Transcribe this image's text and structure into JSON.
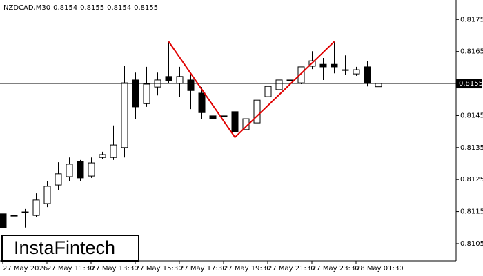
{
  "chart_data": {
    "type": "candlestick",
    "symbol": "NZDCAD,M30",
    "categories": [
      "27 May 2026",
      null,
      null,
      null,
      "27 May 11:30",
      null,
      null,
      null,
      "27 May 13:30",
      null,
      null,
      null,
      "27 May 15:30",
      null,
      null,
      null,
      "27 May 17:30",
      null,
      null,
      null,
      "27 May 19:30",
      null,
      null,
      null,
      "27 May 21:30",
      null,
      null,
      null,
      "27 May 23:30",
      null,
      null,
      null,
      "28 May 01:30",
      null,
      null
    ],
    "open": [
      0.81143,
      0.81138,
      0.81149,
      0.81138,
      0.81175,
      0.81233,
      0.81259,
      0.81306,
      0.81261,
      0.81319,
      0.81319,
      0.8135,
      0.81561,
      0.81487,
      0.81539,
      0.81572,
      0.8155,
      0.81561,
      0.8152,
      0.81449,
      0.81449,
      0.81462,
      0.81406,
      0.81427,
      0.81509,
      0.81531,
      0.81561,
      0.81552,
      0.81604,
      0.8161,
      0.8161,
      0.81593,
      0.8158,
      0.81602,
      0.8154
    ],
    "high": [
      0.81197,
      0.81153,
      0.81158,
      0.81207,
      0.81246,
      0.81304,
      0.81319,
      0.81311,
      0.81319,
      0.81337,
      0.81419,
      0.81604,
      0.81584,
      0.81602,
      0.81584,
      0.81681,
      0.81602,
      0.81584,
      0.81539,
      0.81466,
      0.8147,
      0.81466,
      0.81455,
      0.81509,
      0.81556,
      0.81574,
      0.81569,
      0.81602,
      0.81651,
      0.8163,
      0.81681,
      0.81638,
      0.81602,
      0.81621,
      0.8155
    ],
    "low": [
      0.81067,
      0.81104,
      0.811,
      0.81132,
      0.81164,
      0.81218,
      0.81246,
      0.81246,
      0.81255,
      0.81315,
      0.81311,
      0.81319,
      0.8144,
      0.81477,
      0.81513,
      0.8155,
      0.81509,
      0.8147,
      0.8144,
      0.81436,
      0.81423,
      0.81388,
      0.81397,
      0.81423,
      0.81492,
      0.81518,
      0.81543,
      0.81548,
      0.81595,
      0.81561,
      0.81582,
      0.81578,
      0.81574,
      0.81541,
      0.8154
    ],
    "close": [
      0.81099,
      0.81138,
      0.81149,
      0.81186,
      0.81229,
      0.81268,
      0.81298,
      0.81255,
      0.81302,
      0.81328,
      0.81358,
      0.81552,
      0.81477,
      0.81548,
      0.81561,
      0.81559,
      0.81572,
      0.81528,
      0.81459,
      0.8144,
      0.81449,
      0.81399,
      0.8144,
      0.81498,
      0.81541,
      0.81561,
      0.81561,
      0.81602,
      0.81621,
      0.81602,
      0.81602,
      0.81593,
      0.81593,
      0.8155,
      0.8155
    ],
    "ylim": [
      0.80996,
      0.81811
    ],
    "yticks": [
      0.8105,
      0.8115,
      0.8125,
      0.8135,
      0.8145,
      0.8165,
      0.8175
    ],
    "current_price": 0.8155,
    "pattern": {
      "color": "#e00000",
      "x": [
        15,
        21,
        30
      ],
      "y": [
        0.81681,
        0.81382,
        0.81681
      ]
    },
    "logo": "InstaFintech"
  }
}
